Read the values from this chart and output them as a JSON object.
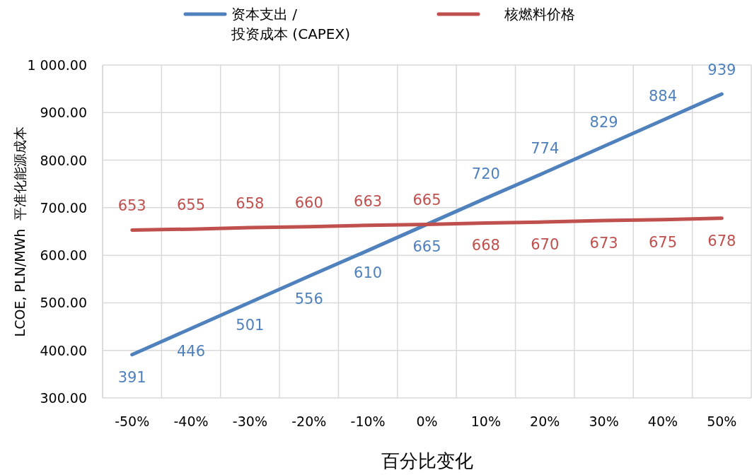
{
  "chart_data": {
    "type": "line",
    "xlabel": "百分比变化",
    "ylabel": "LCOE, PLN/MWh  平准化能源成本",
    "categories": [
      "-50%",
      "-40%",
      "-30%",
      "-20%",
      "-10%",
      "0%",
      "10%",
      "20%",
      "30%",
      "40%",
      "50%"
    ],
    "series": [
      {
        "name": "资本支出 /\n投资成本 (CAPEX)",
        "color": "#4f81bd",
        "values": [
          391,
          446,
          501,
          556,
          610,
          665,
          720,
          774,
          829,
          884,
          939
        ]
      },
      {
        "name": "核燃料价格",
        "color": "#c0504d",
        "values": [
          653,
          655,
          658,
          660,
          663,
          665,
          668,
          670,
          673,
          675,
          678
        ]
      }
    ],
    "ylim": [
      300,
      1000
    ],
    "yticks": [
      {
        "value": 300,
        "label": "300.00"
      },
      {
        "value": 400,
        "label": "400.00"
      },
      {
        "value": 500,
        "label": "500.00"
      },
      {
        "value": 600,
        "label": "600.00"
      },
      {
        "value": 700,
        "label": "700.00"
      },
      {
        "value": 800,
        "label": "800.00"
      },
      {
        "value": 900,
        "label": "900.00"
      },
      {
        "value": 1000,
        "label": "1 000.00"
      }
    ],
    "grid": true,
    "legend": "top",
    "data_labels": true,
    "marker": "none",
    "line_style": "solid"
  }
}
